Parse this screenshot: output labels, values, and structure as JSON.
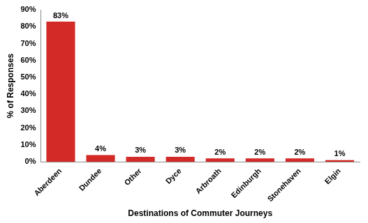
{
  "chart_data": {
    "type": "bar",
    "categories": [
      "Aberdeen",
      "Dundee",
      "Other",
      "Dyce",
      "Arbroath",
      "Edinburgh",
      "Stonehaven",
      "Elgin"
    ],
    "values": [
      83,
      4,
      3,
      3,
      2,
      2,
      2,
      1
    ],
    "value_labels": [
      "83%",
      "4%",
      "3%",
      "3%",
      "2%",
      "2%",
      "2%",
      "1%"
    ],
    "data_labels": true,
    "color": "#d42a27",
    "x_label": "Destinations of Commuter Journeys",
    "y_label": "% of Responses",
    "ylim": [
      0,
      90
    ],
    "yticks": [
      {
        "value": 0,
        "label": "0%"
      },
      {
        "value": 10,
        "label": "10%"
      },
      {
        "value": 20,
        "label": "20%"
      },
      {
        "value": 30,
        "label": "30%"
      },
      {
        "value": 40,
        "label": "40%"
      },
      {
        "value": 50,
        "label": "50%"
      },
      {
        "value": 60,
        "label": "60%"
      },
      {
        "value": 70,
        "label": "70%"
      },
      {
        "value": 80,
        "label": "80%"
      },
      {
        "value": 90,
        "label": "90%"
      }
    ],
    "grid": false
  }
}
